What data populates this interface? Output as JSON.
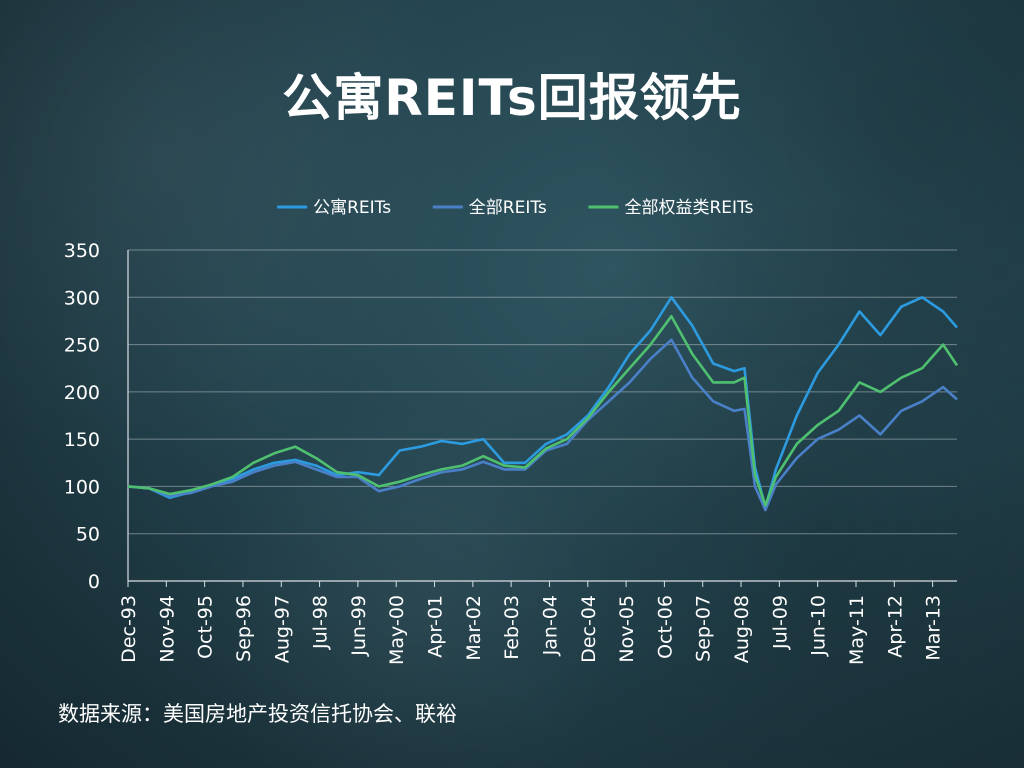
{
  "chart_data": {
    "type": "line",
    "title": "公寓REITs回报领先",
    "ylim": [
      0,
      350
    ],
    "yticks": [
      0,
      50,
      100,
      150,
      200,
      250,
      300,
      350
    ],
    "xticks": [
      "Dec-93",
      "Nov-94",
      "Oct-95",
      "Sep-96",
      "Aug-97",
      "Jul-98",
      "Jun-99",
      "May-00",
      "Apr-01",
      "Mar-02",
      "Feb-03",
      "Jan-04",
      "Dec-04",
      "Nov-05",
      "Oct-06",
      "Sep-07",
      "Aug-08",
      "Jul-09",
      "Jun-10",
      "May-11",
      "Apr-12",
      "Mar-13"
    ],
    "x_range": [
      "Dec-93",
      "Oct-13"
    ],
    "grid": true,
    "legend": "top",
    "x": [
      "1993-12",
      "1994-06",
      "1994-12",
      "1995-06",
      "1995-12",
      "1996-06",
      "1996-12",
      "1997-06",
      "1997-12",
      "1998-06",
      "1998-12",
      "1999-06",
      "1999-12",
      "2000-06",
      "2000-12",
      "2001-06",
      "2001-12",
      "2002-06",
      "2002-12",
      "2003-06",
      "2003-12",
      "2004-06",
      "2004-12",
      "2005-06",
      "2005-12",
      "2006-06",
      "2006-12",
      "2007-06",
      "2007-12",
      "2008-06",
      "2008-09",
      "2008-12",
      "2009-03",
      "2009-06",
      "2009-12",
      "2010-06",
      "2010-12",
      "2011-06",
      "2011-12",
      "2012-06",
      "2012-12",
      "2013-06",
      "2013-10"
    ],
    "series": [
      {
        "name": "公寓REITs",
        "color": "#2c9be0",
        "values": [
          100,
          98,
          88,
          94,
          102,
          108,
          118,
          125,
          128,
          122,
          112,
          115,
          112,
          138,
          142,
          148,
          145,
          150,
          125,
          125,
          145,
          155,
          175,
          205,
          240,
          265,
          300,
          270,
          230,
          222,
          225,
          120,
          78,
          118,
          175,
          220,
          250,
          285,
          260,
          290,
          300,
          285,
          268
        ]
      },
      {
        "name": "全部REITs",
        "color": "#4a80c8",
        "values": [
          100,
          98,
          90,
          93,
          100,
          105,
          115,
          122,
          126,
          118,
          110,
          110,
          95,
          100,
          108,
          115,
          118,
          126,
          118,
          118,
          138,
          145,
          170,
          190,
          210,
          235,
          255,
          215,
          190,
          180,
          182,
          100,
          75,
          102,
          130,
          150,
          160,
          175,
          155,
          180,
          190,
          205,
          192
        ]
      },
      {
        "name": "全部权益类REITs",
        "color": "#4fc070",
        "values": [
          100,
          98,
          92,
          96,
          102,
          110,
          125,
          135,
          142,
          130,
          115,
          112,
          100,
          105,
          112,
          118,
          122,
          132,
          122,
          120,
          140,
          150,
          172,
          200,
          225,
          250,
          280,
          240,
          210,
          210,
          215,
          112,
          80,
          110,
          145,
          165,
          180,
          210,
          200,
          215,
          225,
          250,
          228
        ]
      }
    ]
  },
  "source": "数据来源：美国房地产投资信托协会、联裕"
}
